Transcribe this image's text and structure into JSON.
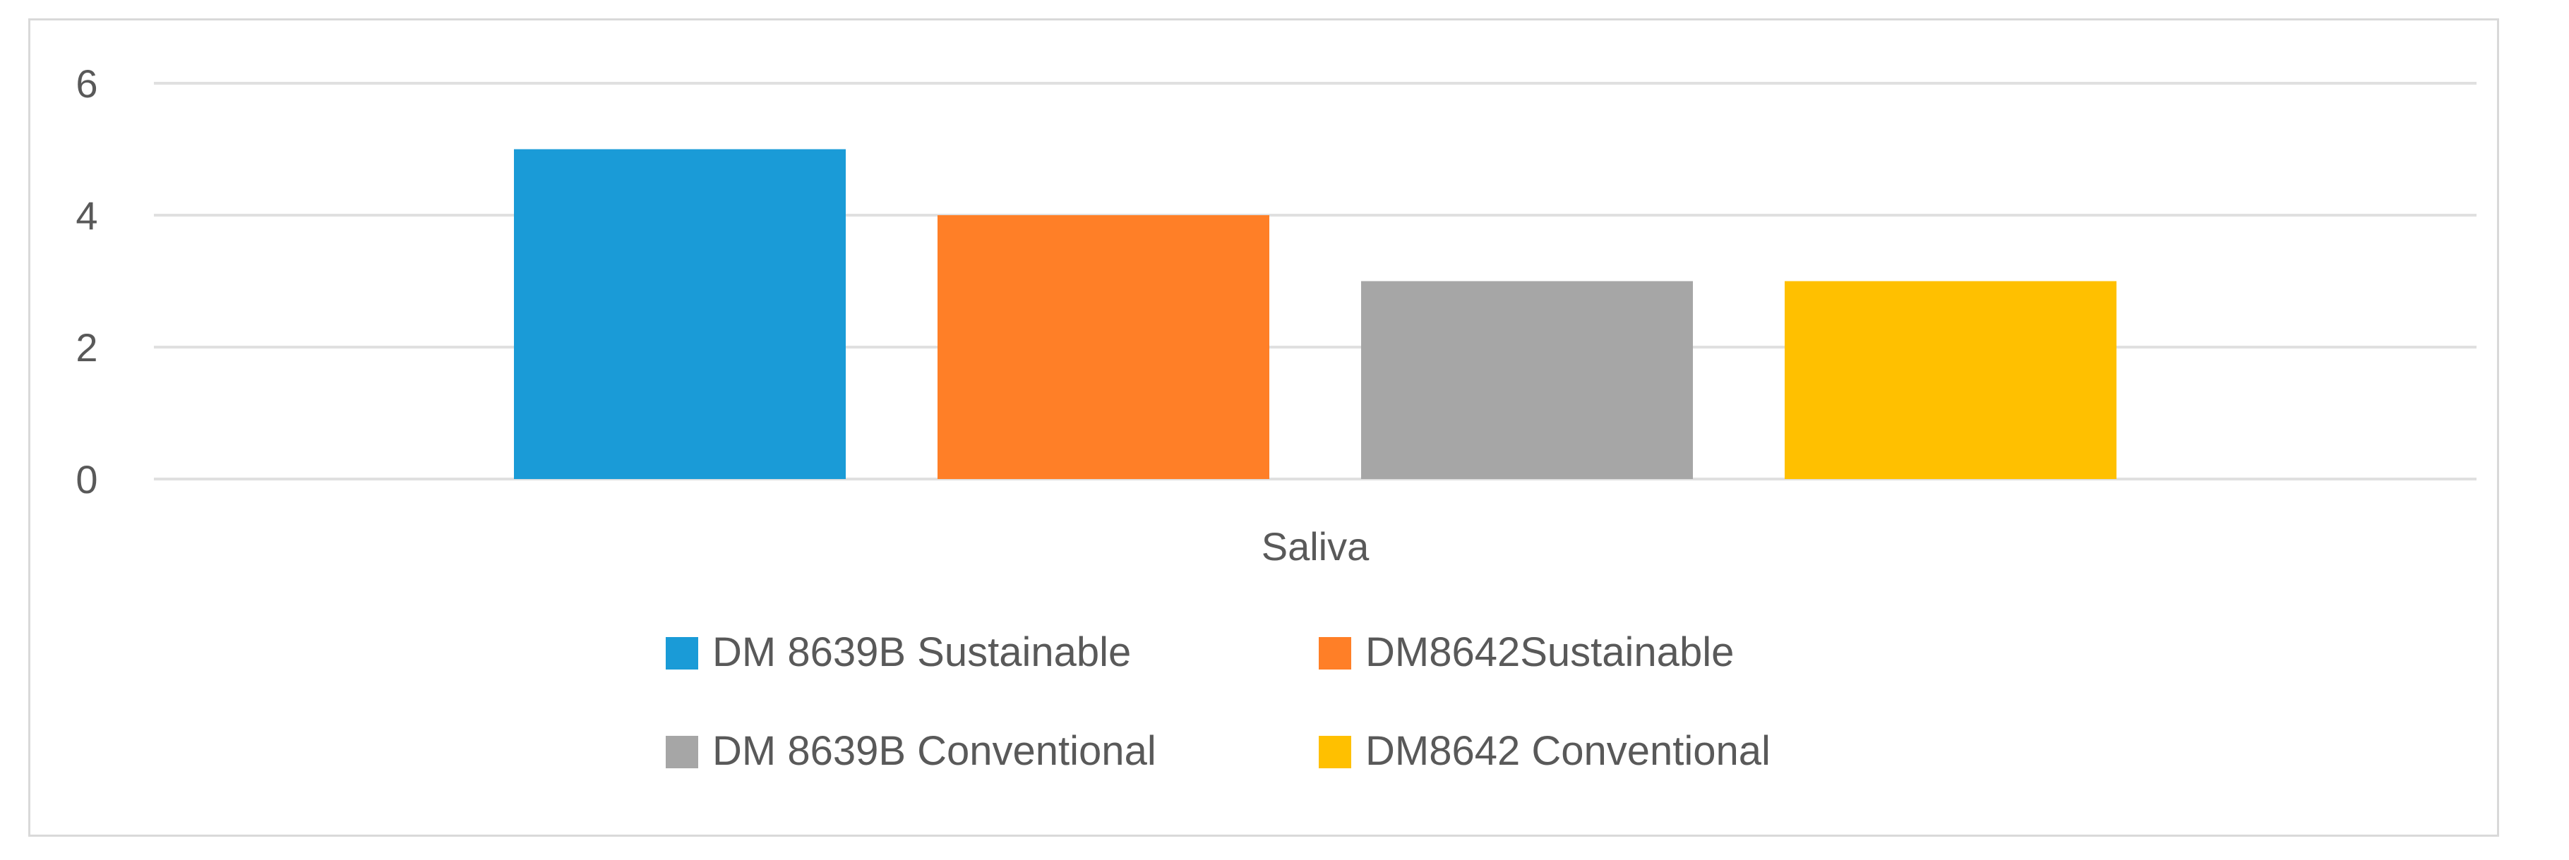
{
  "chart_data": {
    "type": "bar",
    "title": "",
    "xlabel": "",
    "ylabel": "",
    "categories": [
      "Saliva"
    ],
    "series": [
      {
        "name": "DM 8639B Sustainable",
        "values": [
          5
        ],
        "color": "#1a9bd7"
      },
      {
        "name": "DM8642Sustainable",
        "values": [
          4
        ],
        "color": "#ff7f27"
      },
      {
        "name": "DM 8639B Conventional",
        "values": [
          3
        ],
        "color": "#a6a6a6"
      },
      {
        "name": "DM8642 Conventional",
        "values": [
          3
        ],
        "color": "#ffc000"
      }
    ],
    "ylim": [
      0,
      6
    ],
    "yticks": [
      "0",
      "2",
      "4",
      "6"
    ],
    "grid": true,
    "legend_position": "bottom",
    "gridline_color": "#e0e0e0",
    "text_color": "#595959"
  }
}
